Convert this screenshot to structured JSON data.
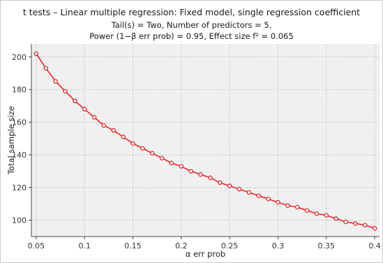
{
  "title": "t tests – Linear multiple regression: Fixed model, single regression coefficient",
  "subtitle_lines": [
    "Tail(s) = Two, Number of predictors = 5,",
    "Power (1−β err prob) = 0.95, Effect size f² = 0.065"
  ],
  "colors": {
    "line": "#e0262a",
    "marker_fill": "#ffffff",
    "plot_background": "#f0f0f0",
    "grid": "#c4c4c4",
    "axis": "#444444"
  },
  "chart_data": {
    "type": "line",
    "title": "t tests – Linear multiple regression: Fixed model, single regression coefficient",
    "xlabel": "α err prob",
    "ylabel": "Total sample size",
    "xlim": [
      0.045,
      0.405
    ],
    "ylim": [
      90,
      208
    ],
    "xticks": [
      0.05,
      0.1,
      0.15,
      0.2,
      0.25,
      0.3,
      0.35,
      0.4
    ],
    "xtick_labels": [
      "0.05",
      "0.1",
      "0.15",
      "0.2",
      "0.25",
      "0.3",
      "0.35",
      "0.4"
    ],
    "yticks": [
      100,
      120,
      140,
      160,
      180,
      200
    ],
    "ytick_labels": [
      "100",
      "120",
      "140",
      "160",
      "180",
      "200"
    ],
    "grid": true,
    "marker": "open-circle",
    "series": [
      {
        "x": [
          0.05,
          0.06,
          0.07,
          0.08,
          0.09,
          0.1,
          0.11,
          0.12,
          0.13,
          0.14,
          0.15,
          0.16,
          0.17,
          0.18,
          0.19,
          0.2,
          0.21,
          0.22,
          0.23,
          0.24,
          0.25,
          0.26,
          0.27,
          0.28,
          0.29,
          0.3,
          0.31,
          0.32,
          0.33,
          0.34,
          0.35,
          0.36,
          0.37,
          0.38,
          0.39,
          0.4
        ],
        "values": [
          202,
          193,
          185,
          179,
          173,
          168,
          163,
          158,
          155,
          151,
          147,
          144,
          141,
          138,
          135,
          133,
          130,
          128,
          126,
          123,
          121,
          119,
          117,
          115,
          113,
          111,
          109,
          108,
          106,
          104,
          103,
          101,
          99,
          98,
          97,
          95
        ]
      }
    ]
  }
}
